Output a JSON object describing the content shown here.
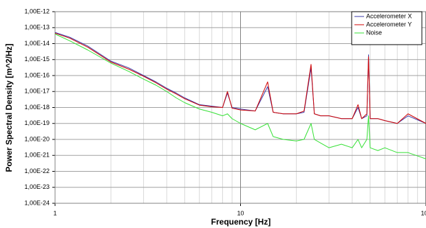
{
  "chart_data": {
    "type": "line",
    "x_label": "Frequency [Hz]",
    "y_label": "Power Spectral Density [m^2/Hz]",
    "x": [
      1,
      1.2,
      1.5,
      2,
      2.5,
      3,
      3.5,
      4,
      4.5,
      5,
      6,
      7,
      8,
      8.5,
      9,
      10,
      12,
      14,
      15,
      17,
      20,
      22,
      24,
      25,
      27,
      30,
      35,
      40,
      43,
      45,
      48,
      49,
      50,
      55,
      60,
      70,
      80,
      100
    ],
    "series": [
      {
        "name": "Accelerometer X",
        "color": "#3a3aa8",
        "values": [
          5e-14,
          2.5e-14,
          7e-15,
          8e-16,
          3e-16,
          1e-16,
          4e-17,
          1.6e-17,
          8e-18,
          4e-18,
          1.5e-18,
          1.2e-18,
          1e-18,
          8e-18,
          1e-18,
          8e-19,
          6e-19,
          2e-17,
          5e-19,
          4e-19,
          4e-19,
          5e-19,
          3e-16,
          4e-19,
          3e-19,
          3e-19,
          2e-19,
          2e-19,
          1e-18,
          2e-19,
          3e-19,
          2e-15,
          2e-19,
          2e-19,
          1.5e-19,
          1e-19,
          3e-19,
          1e-19
        ]
      },
      {
        "name": "Accelerometer Y",
        "color": "#d00000",
        "values": [
          4.5e-14,
          2.2e-14,
          6e-15,
          7e-16,
          2.5e-16,
          9e-17,
          3.5e-17,
          1.4e-17,
          7e-18,
          3.5e-18,
          1.4e-18,
          1.1e-18,
          1e-18,
          1e-17,
          9e-19,
          7e-19,
          6e-19,
          4e-17,
          5e-19,
          4e-19,
          4e-19,
          6e-19,
          5e-16,
          4e-19,
          3e-19,
          3e-19,
          2e-19,
          2e-19,
          1.5e-18,
          2e-19,
          4e-19,
          1.5e-15,
          2e-19,
          2e-19,
          1.5e-19,
          1e-19,
          4e-19,
          1e-19
        ]
      },
      {
        "name": "Noise",
        "color": "#33e033",
        "values": [
          4e-14,
          1.5e-14,
          4e-15,
          6e-16,
          1.8e-16,
          6e-17,
          2.5e-17,
          1e-17,
          4e-18,
          2e-18,
          8e-19,
          5e-19,
          3e-19,
          4e-19,
          2e-19,
          1e-19,
          4e-20,
          1e-19,
          1.5e-20,
          1e-20,
          8e-21,
          1e-20,
          1e-19,
          1e-20,
          6e-21,
          3e-21,
          5e-21,
          3e-21,
          1e-20,
          3e-21,
          1e-20,
          3e-19,
          3e-21,
          2e-21,
          3e-21,
          1.5e-21,
          1.5e-21,
          6e-22
        ]
      }
    ],
    "xlim": [
      1,
      100
    ],
    "xticks": [
      1,
      10,
      100
    ],
    "xlog": true,
    "ylim": [
      1e-24,
      1e-12
    ],
    "ylog": true,
    "yticks": [
      {
        "value": 1e-12,
        "label": "1,00E-12"
      },
      {
        "value": 1e-13,
        "label": "1,00E-13"
      },
      {
        "value": 1e-14,
        "label": "1,00E-14"
      },
      {
        "value": 1e-15,
        "label": "1,00E-15"
      },
      {
        "value": 1e-16,
        "label": "1,00E-16"
      },
      {
        "value": 1e-17,
        "label": "1,00E-17"
      },
      {
        "value": 1e-18,
        "label": "1,00E-18"
      },
      {
        "value": 1e-19,
        "label": "1,00E-19"
      },
      {
        "value": 1e-20,
        "label": "1,00E-20"
      },
      {
        "value": 1e-21,
        "label": "1,00E-21"
      },
      {
        "value": 1e-22,
        "label": "1,00E-22"
      },
      {
        "value": 1e-23,
        "label": "1,00E-23"
      },
      {
        "value": 1e-24,
        "label": "1,00E-24"
      }
    ],
    "grid": true,
    "minor_grid": true,
    "legend": "upper right"
  }
}
